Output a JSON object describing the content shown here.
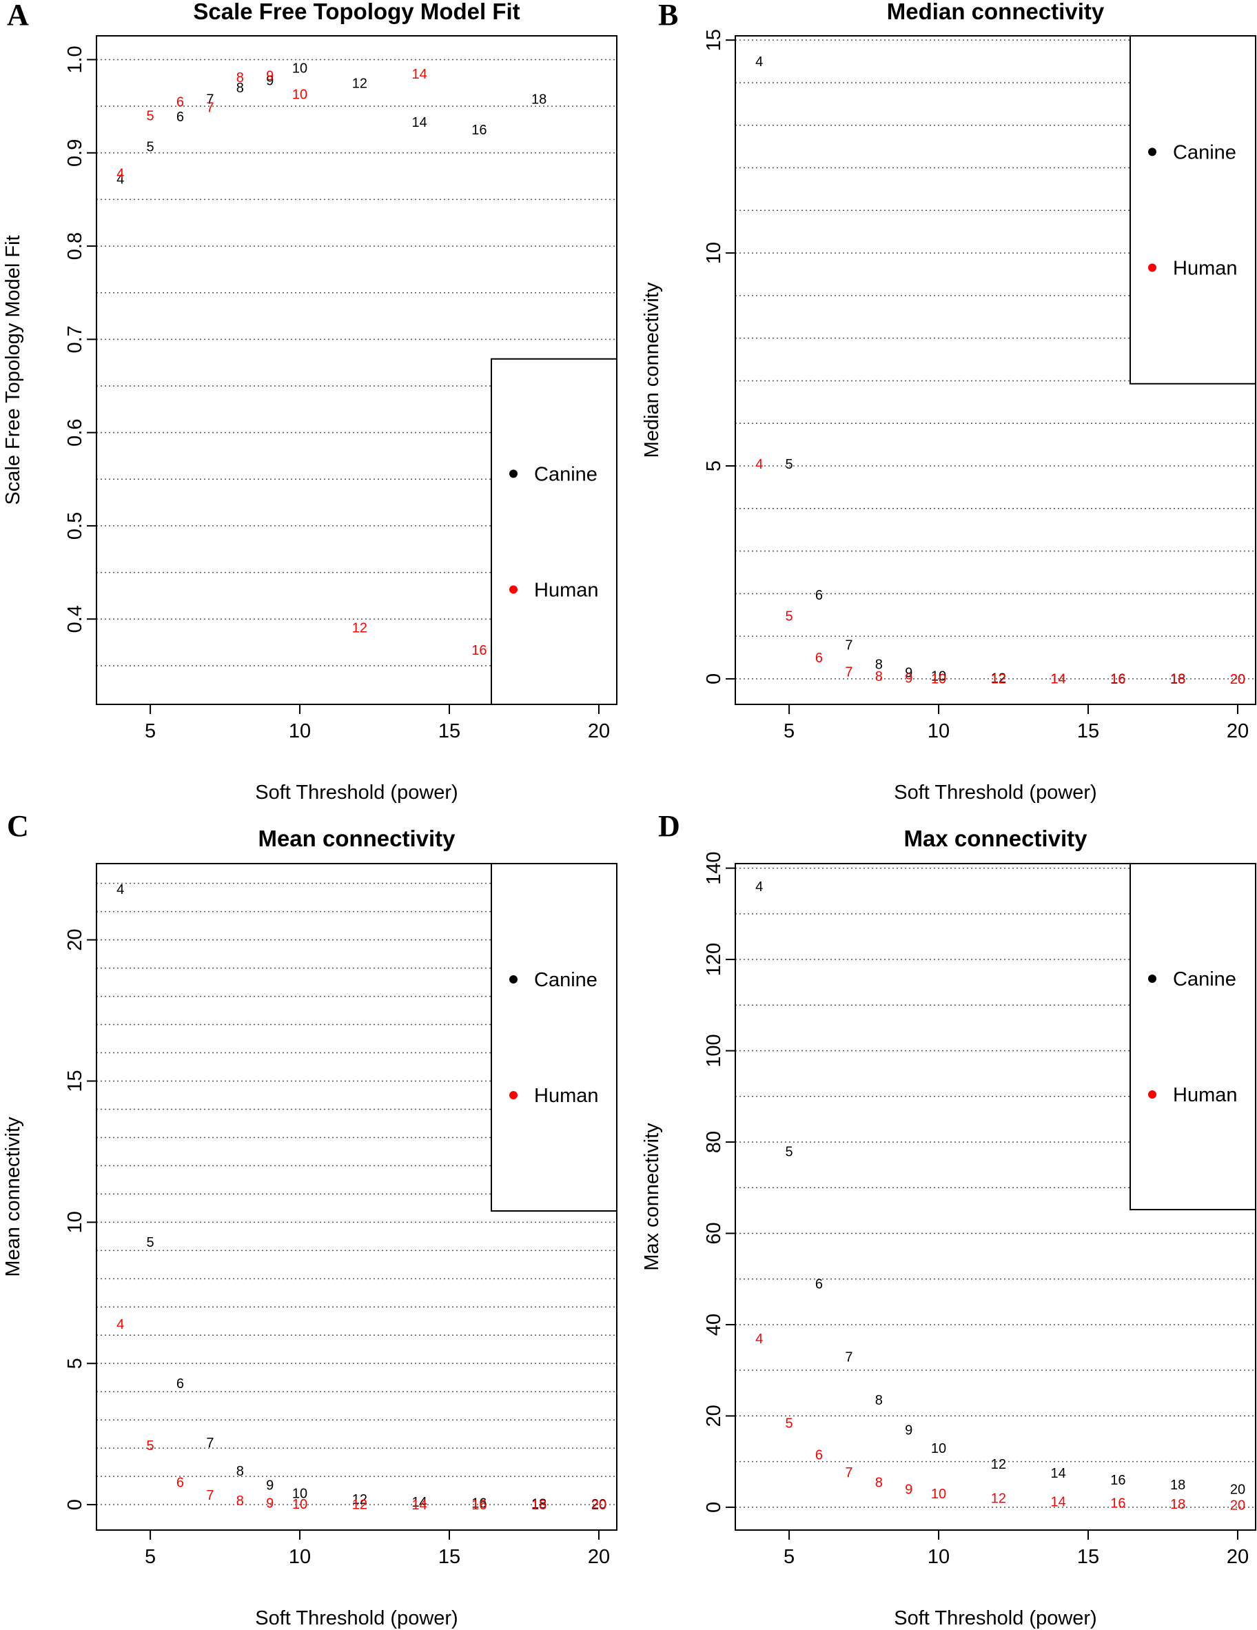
{
  "colors": {
    "canine": "#000000",
    "human": "#ff0000",
    "grid": "#555555"
  },
  "chart_data": [
    {
      "type": "scatter",
      "panel_letter": "A",
      "title": "Scale Free Topology Model Fit",
      "xlabel": "Soft Threshold (power)",
      "ylabel": "Scale Free Topology Model Fit",
      "xlim": [
        3.2,
        20.6
      ],
      "ylim": [
        0.3085,
        1.0255
      ],
      "xticks": [
        5,
        10,
        15,
        20
      ],
      "yticks": [
        0.4,
        0.5,
        0.6,
        0.7,
        0.8,
        0.9,
        1.0
      ],
      "ytick_labels": [
        "0.4",
        "0.5",
        "0.6",
        "0.7",
        "0.8",
        "0.9",
        "1.0"
      ],
      "grid_y": [
        0.35,
        0.4,
        0.45,
        0.5,
        0.55,
        0.6,
        0.65,
        0.7,
        0.75,
        0.8,
        0.85,
        0.9,
        0.95,
        1.0
      ],
      "legend": {
        "position": "bottom-right",
        "bottom": 0.3085,
        "top": 0.679,
        "entries": [
          "Canine",
          "Human"
        ]
      },
      "series": [
        {
          "name": "Canine",
          "labels": [
            "4",
            "5",
            "6",
            "7",
            "8",
            "9",
            "10",
            "12",
            "14",
            "16",
            "18"
          ],
          "x": [
            4,
            5,
            6,
            7,
            8,
            9,
            10,
            12,
            14,
            16,
            18
          ],
          "y": [
            0.872,
            0.907,
            0.939,
            0.958,
            0.97,
            0.978,
            0.991,
            0.975,
            0.933,
            0.925,
            0.958
          ]
        },
        {
          "name": "Human",
          "labels": [
            "4",
            "5",
            "6",
            "7",
            "8",
            "9",
            "10",
            "12",
            "14",
            "16"
          ],
          "x": [
            4,
            5,
            6,
            7,
            8,
            9,
            10,
            12,
            14,
            16
          ],
          "y": [
            0.878,
            0.94,
            0.955,
            0.949,
            0.981,
            0.983,
            0.963,
            0.391,
            0.985,
            0.367
          ]
        }
      ]
    },
    {
      "type": "scatter",
      "panel_letter": "B",
      "title": "Median connectivity",
      "xlabel": "Soft Threshold (power)",
      "ylabel": "Median connectivity",
      "xlim": [
        3.2,
        20.6
      ],
      "ylim": [
        -0.6,
        15.1
      ],
      "xticks": [
        5,
        10,
        15,
        20
      ],
      "yticks": [
        0,
        5,
        10,
        15
      ],
      "ytick_labels": [
        "0",
        "5",
        "10",
        "15"
      ],
      "grid_y": [
        0,
        1,
        2,
        3,
        4,
        5,
        6,
        7,
        8,
        9,
        10,
        11,
        12,
        13,
        14,
        15
      ],
      "legend": {
        "position": "top-right",
        "bottom": 6.93,
        "top": 15.1,
        "entries": [
          "Canine",
          "Human"
        ]
      },
      "series": [
        {
          "name": "Canine",
          "labels": [
            "4",
            "5",
            "6",
            "7",
            "8",
            "9",
            "10",
            "12",
            "14",
            "16",
            "18",
            "20"
          ],
          "x": [
            4,
            5,
            6,
            7,
            8,
            9,
            10,
            12,
            14,
            16,
            18,
            20
          ],
          "y": [
            14.5,
            5.05,
            1.97,
            0.8,
            0.35,
            0.15,
            0.07,
            0.02,
            0.01,
            0.005,
            0.003,
            0.002
          ]
        },
        {
          "name": "Human",
          "labels": [
            "4",
            "5",
            "6",
            "7",
            "8",
            "9",
            "10",
            "12",
            "14",
            "16",
            "18",
            "20"
          ],
          "x": [
            4,
            5,
            6,
            7,
            8,
            9,
            10,
            12,
            14,
            16,
            18,
            20
          ],
          "y": [
            5.05,
            1.48,
            0.5,
            0.17,
            0.06,
            0.02,
            0.01,
            0.005,
            0.003,
            0.002,
            0.001,
            0.001
          ]
        }
      ]
    },
    {
      "type": "scatter",
      "panel_letter": "C",
      "title": "Mean connectivity",
      "xlabel": "Soft Threshold (power)",
      "ylabel": "Mean connectivity",
      "xlim": [
        3.2,
        20.6
      ],
      "ylim": [
        -0.9,
        22.7
      ],
      "xticks": [
        5,
        10,
        15,
        20
      ],
      "yticks": [
        0,
        5,
        10,
        15,
        20
      ],
      "ytick_labels": [
        "0",
        "5",
        "10",
        "15",
        "20"
      ],
      "grid_y": [
        0,
        1,
        2,
        3,
        4,
        5,
        6,
        7,
        8,
        9,
        10,
        11,
        12,
        13,
        14,
        15,
        16,
        17,
        18,
        19,
        20,
        21,
        22
      ],
      "legend": {
        "position": "top-right",
        "bottom": 10.4,
        "top": 22.7,
        "entries": [
          "Canine",
          "Human"
        ]
      },
      "series": [
        {
          "name": "Canine",
          "labels": [
            "4",
            "5",
            "6",
            "7",
            "8",
            "9",
            "10",
            "12",
            "14",
            "16",
            "18",
            "20"
          ],
          "x": [
            4,
            5,
            6,
            7,
            8,
            9,
            10,
            12,
            14,
            16,
            18,
            20
          ],
          "y": [
            21.8,
            9.3,
            4.3,
            2.2,
            1.2,
            0.7,
            0.4,
            0.2,
            0.1,
            0.06,
            0.04,
            0.03
          ]
        },
        {
          "name": "Human",
          "labels": [
            "4",
            "5",
            "6",
            "7",
            "8",
            "9",
            "10",
            "12",
            "14",
            "16",
            "18",
            "20"
          ],
          "x": [
            4,
            5,
            6,
            7,
            8,
            9,
            10,
            12,
            14,
            16,
            18,
            20
          ],
          "y": [
            6.4,
            2.1,
            0.8,
            0.35,
            0.15,
            0.06,
            0.03,
            0.01,
            0.005,
            0.003,
            0.002,
            0.001
          ]
        }
      ]
    },
    {
      "type": "scatter",
      "panel_letter": "D",
      "title": "Max connectivity",
      "xlabel": "Soft Threshold (power)",
      "ylabel": "Max connectivity",
      "xlim": [
        3.2,
        20.6
      ],
      "ylim": [
        -5.0,
        141.0
      ],
      "xticks": [
        5,
        10,
        15,
        20
      ],
      "yticks": [
        0,
        20,
        40,
        60,
        80,
        100,
        120,
        140
      ],
      "ytick_labels": [
        "0",
        "20",
        "40",
        "60",
        "80",
        "100",
        "120",
        "140"
      ],
      "grid_y": [
        0,
        10,
        20,
        30,
        40,
        50,
        60,
        70,
        80,
        90,
        100,
        110,
        120,
        130,
        140
      ],
      "legend": {
        "position": "top-right",
        "bottom": 65.2,
        "top": 141.0,
        "entries": [
          "Canine",
          "Human"
        ]
      },
      "series": [
        {
          "name": "Canine",
          "labels": [
            "4",
            "5",
            "6",
            "7",
            "8",
            "9",
            "10",
            "12",
            "14",
            "16",
            "18",
            "20"
          ],
          "x": [
            4,
            5,
            6,
            7,
            8,
            9,
            10,
            12,
            14,
            16,
            18,
            20
          ],
          "y": [
            136,
            78,
            49,
            33,
            23.5,
            17,
            13,
            9.5,
            7.5,
            6,
            5,
            4
          ]
        },
        {
          "name": "Human",
          "labels": [
            "4",
            "5",
            "6",
            "7",
            "8",
            "9",
            "10",
            "12",
            "14",
            "16",
            "18",
            "20"
          ],
          "x": [
            4,
            5,
            6,
            7,
            8,
            9,
            10,
            12,
            14,
            16,
            18,
            20
          ],
          "y": [
            37,
            18.5,
            11.5,
            7.7,
            5.5,
            4,
            3,
            2,
            1.3,
            1,
            0.7,
            0.5
          ]
        }
      ]
    }
  ]
}
